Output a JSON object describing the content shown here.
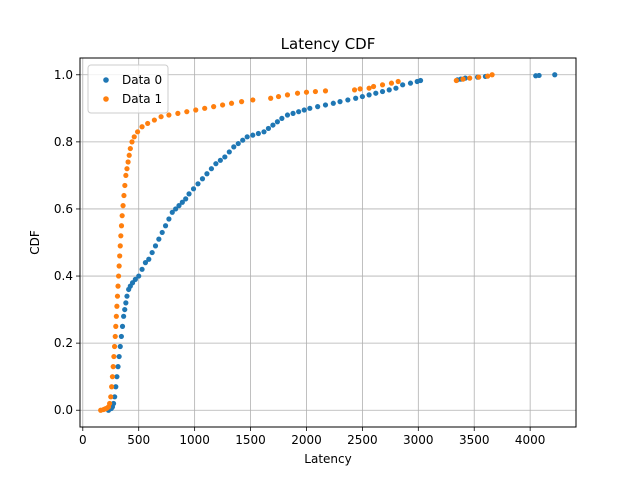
{
  "chart_data": {
    "type": "scatter",
    "title": "Latency CDF",
    "xlabel": "Latency",
    "ylabel": "CDF",
    "xlim": [
      -25,
      4410
    ],
    "ylim": [
      -0.05,
      1.05
    ],
    "x_ticks": [
      0,
      500,
      1000,
      1500,
      2000,
      2500,
      3000,
      3500,
      4000
    ],
    "y_ticks": [
      0.0,
      0.2,
      0.4,
      0.6,
      0.8,
      1.0
    ],
    "x_tick_labels": [
      "0",
      "500",
      "1000",
      "1500",
      "2000",
      "2500",
      "3000",
      "3500",
      "4000"
    ],
    "y_tick_labels": [
      "0.0",
      "0.2",
      "0.4",
      "0.6",
      "0.8",
      "1.0"
    ],
    "grid": true,
    "legend_position": "top-left",
    "series": [
      {
        "name": "Data 0",
        "color": "#1f77b4",
        "points": [
          [
            230,
            0.0
          ],
          [
            255,
            0.005
          ],
          [
            265,
            0.01
          ],
          [
            275,
            0.02
          ],
          [
            285,
            0.04
          ],
          [
            295,
            0.07
          ],
          [
            305,
            0.1
          ],
          [
            315,
            0.13
          ],
          [
            325,
            0.16
          ],
          [
            335,
            0.19
          ],
          [
            345,
            0.22
          ],
          [
            355,
            0.25
          ],
          [
            365,
            0.28
          ],
          [
            375,
            0.3
          ],
          [
            385,
            0.32
          ],
          [
            395,
            0.34
          ],
          [
            410,
            0.36
          ],
          [
            425,
            0.37
          ],
          [
            445,
            0.38
          ],
          [
            470,
            0.39
          ],
          [
            500,
            0.4
          ],
          [
            530,
            0.42
          ],
          [
            560,
            0.44
          ],
          [
            590,
            0.45
          ],
          [
            620,
            0.47
          ],
          [
            650,
            0.49
          ],
          [
            680,
            0.51
          ],
          [
            710,
            0.53
          ],
          [
            740,
            0.55
          ],
          [
            770,
            0.57
          ],
          [
            800,
            0.59
          ],
          [
            830,
            0.6
          ],
          [
            860,
            0.61
          ],
          [
            890,
            0.62
          ],
          [
            920,
            0.63
          ],
          [
            950,
            0.645
          ],
          [
            990,
            0.66
          ],
          [
            1030,
            0.675
          ],
          [
            1070,
            0.69
          ],
          [
            1110,
            0.705
          ],
          [
            1150,
            0.72
          ],
          [
            1190,
            0.735
          ],
          [
            1230,
            0.745
          ],
          [
            1270,
            0.755
          ],
          [
            1310,
            0.77
          ],
          [
            1350,
            0.785
          ],
          [
            1390,
            0.795
          ],
          [
            1430,
            0.805
          ],
          [
            1470,
            0.815
          ],
          [
            1520,
            0.82
          ],
          [
            1570,
            0.825
          ],
          [
            1620,
            0.83
          ],
          [
            1660,
            0.84
          ],
          [
            1700,
            0.85
          ],
          [
            1740,
            0.86
          ],
          [
            1780,
            0.87
          ],
          [
            1830,
            0.88
          ],
          [
            1880,
            0.885
          ],
          [
            1930,
            0.89
          ],
          [
            1980,
            0.895
          ],
          [
            2030,
            0.9
          ],
          [
            2100,
            0.905
          ],
          [
            2170,
            0.91
          ],
          [
            2240,
            0.915
          ],
          [
            2300,
            0.92
          ],
          [
            2370,
            0.925
          ],
          [
            2440,
            0.93
          ],
          [
            2500,
            0.935
          ],
          [
            2560,
            0.94
          ],
          [
            2620,
            0.945
          ],
          [
            2680,
            0.95
          ],
          [
            2740,
            0.955
          ],
          [
            2800,
            0.96
          ],
          [
            2860,
            0.97
          ],
          [
            2930,
            0.975
          ],
          [
            2990,
            0.98
          ],
          [
            3020,
            0.983
          ],
          [
            3350,
            0.985
          ],
          [
            3380,
            0.987
          ],
          [
            3420,
            0.99
          ],
          [
            3530,
            0.993
          ],
          [
            3600,
            0.995
          ],
          [
            4050,
            0.997
          ],
          [
            4080,
            0.998
          ],
          [
            4220,
            1.0
          ]
        ]
      },
      {
        "name": "Data 1",
        "color": "#ff7f0e",
        "points": [
          [
            160,
            0.0
          ],
          [
            185,
            0.002
          ],
          [
            200,
            0.004
          ],
          [
            215,
            0.006
          ],
          [
            230,
            0.01
          ],
          [
            240,
            0.02
          ],
          [
            250,
            0.04
          ],
          [
            258,
            0.07
          ],
          [
            265,
            0.1
          ],
          [
            272,
            0.13
          ],
          [
            278,
            0.16
          ],
          [
            284,
            0.19
          ],
          [
            290,
            0.22
          ],
          [
            295,
            0.25
          ],
          [
            300,
            0.28
          ],
          [
            305,
            0.31
          ],
          [
            310,
            0.34
          ],
          [
            315,
            0.37
          ],
          [
            320,
            0.4
          ],
          [
            325,
            0.43
          ],
          [
            330,
            0.46
          ],
          [
            335,
            0.49
          ],
          [
            340,
            0.52
          ],
          [
            346,
            0.55
          ],
          [
            352,
            0.58
          ],
          [
            360,
            0.61
          ],
          [
            368,
            0.64
          ],
          [
            376,
            0.67
          ],
          [
            385,
            0.7
          ],
          [
            395,
            0.72
          ],
          [
            405,
            0.74
          ],
          [
            415,
            0.76
          ],
          [
            425,
            0.78
          ],
          [
            440,
            0.8
          ],
          [
            460,
            0.815
          ],
          [
            490,
            0.83
          ],
          [
            530,
            0.845
          ],
          [
            580,
            0.855
          ],
          [
            640,
            0.865
          ],
          [
            700,
            0.875
          ],
          [
            770,
            0.88
          ],
          [
            850,
            0.885
          ],
          [
            930,
            0.89
          ],
          [
            1010,
            0.895
          ],
          [
            1090,
            0.9
          ],
          [
            1170,
            0.905
          ],
          [
            1250,
            0.91
          ],
          [
            1330,
            0.915
          ],
          [
            1420,
            0.92
          ],
          [
            1520,
            0.925
          ],
          [
            1680,
            0.93
          ],
          [
            1750,
            0.935
          ],
          [
            1830,
            0.94
          ],
          [
            1920,
            0.945
          ],
          [
            2000,
            0.948
          ],
          [
            2080,
            0.95
          ],
          [
            2170,
            0.952
          ],
          [
            2430,
            0.955
          ],
          [
            2480,
            0.958
          ],
          [
            2560,
            0.96
          ],
          [
            2600,
            0.965
          ],
          [
            2680,
            0.97
          ],
          [
            2760,
            0.975
          ],
          [
            2820,
            0.98
          ],
          [
            3340,
            0.983
          ],
          [
            3400,
            0.987
          ],
          [
            3460,
            0.99
          ],
          [
            3540,
            0.993
          ],
          [
            3620,
            0.996
          ],
          [
            3660,
            1.0
          ]
        ]
      }
    ]
  }
}
